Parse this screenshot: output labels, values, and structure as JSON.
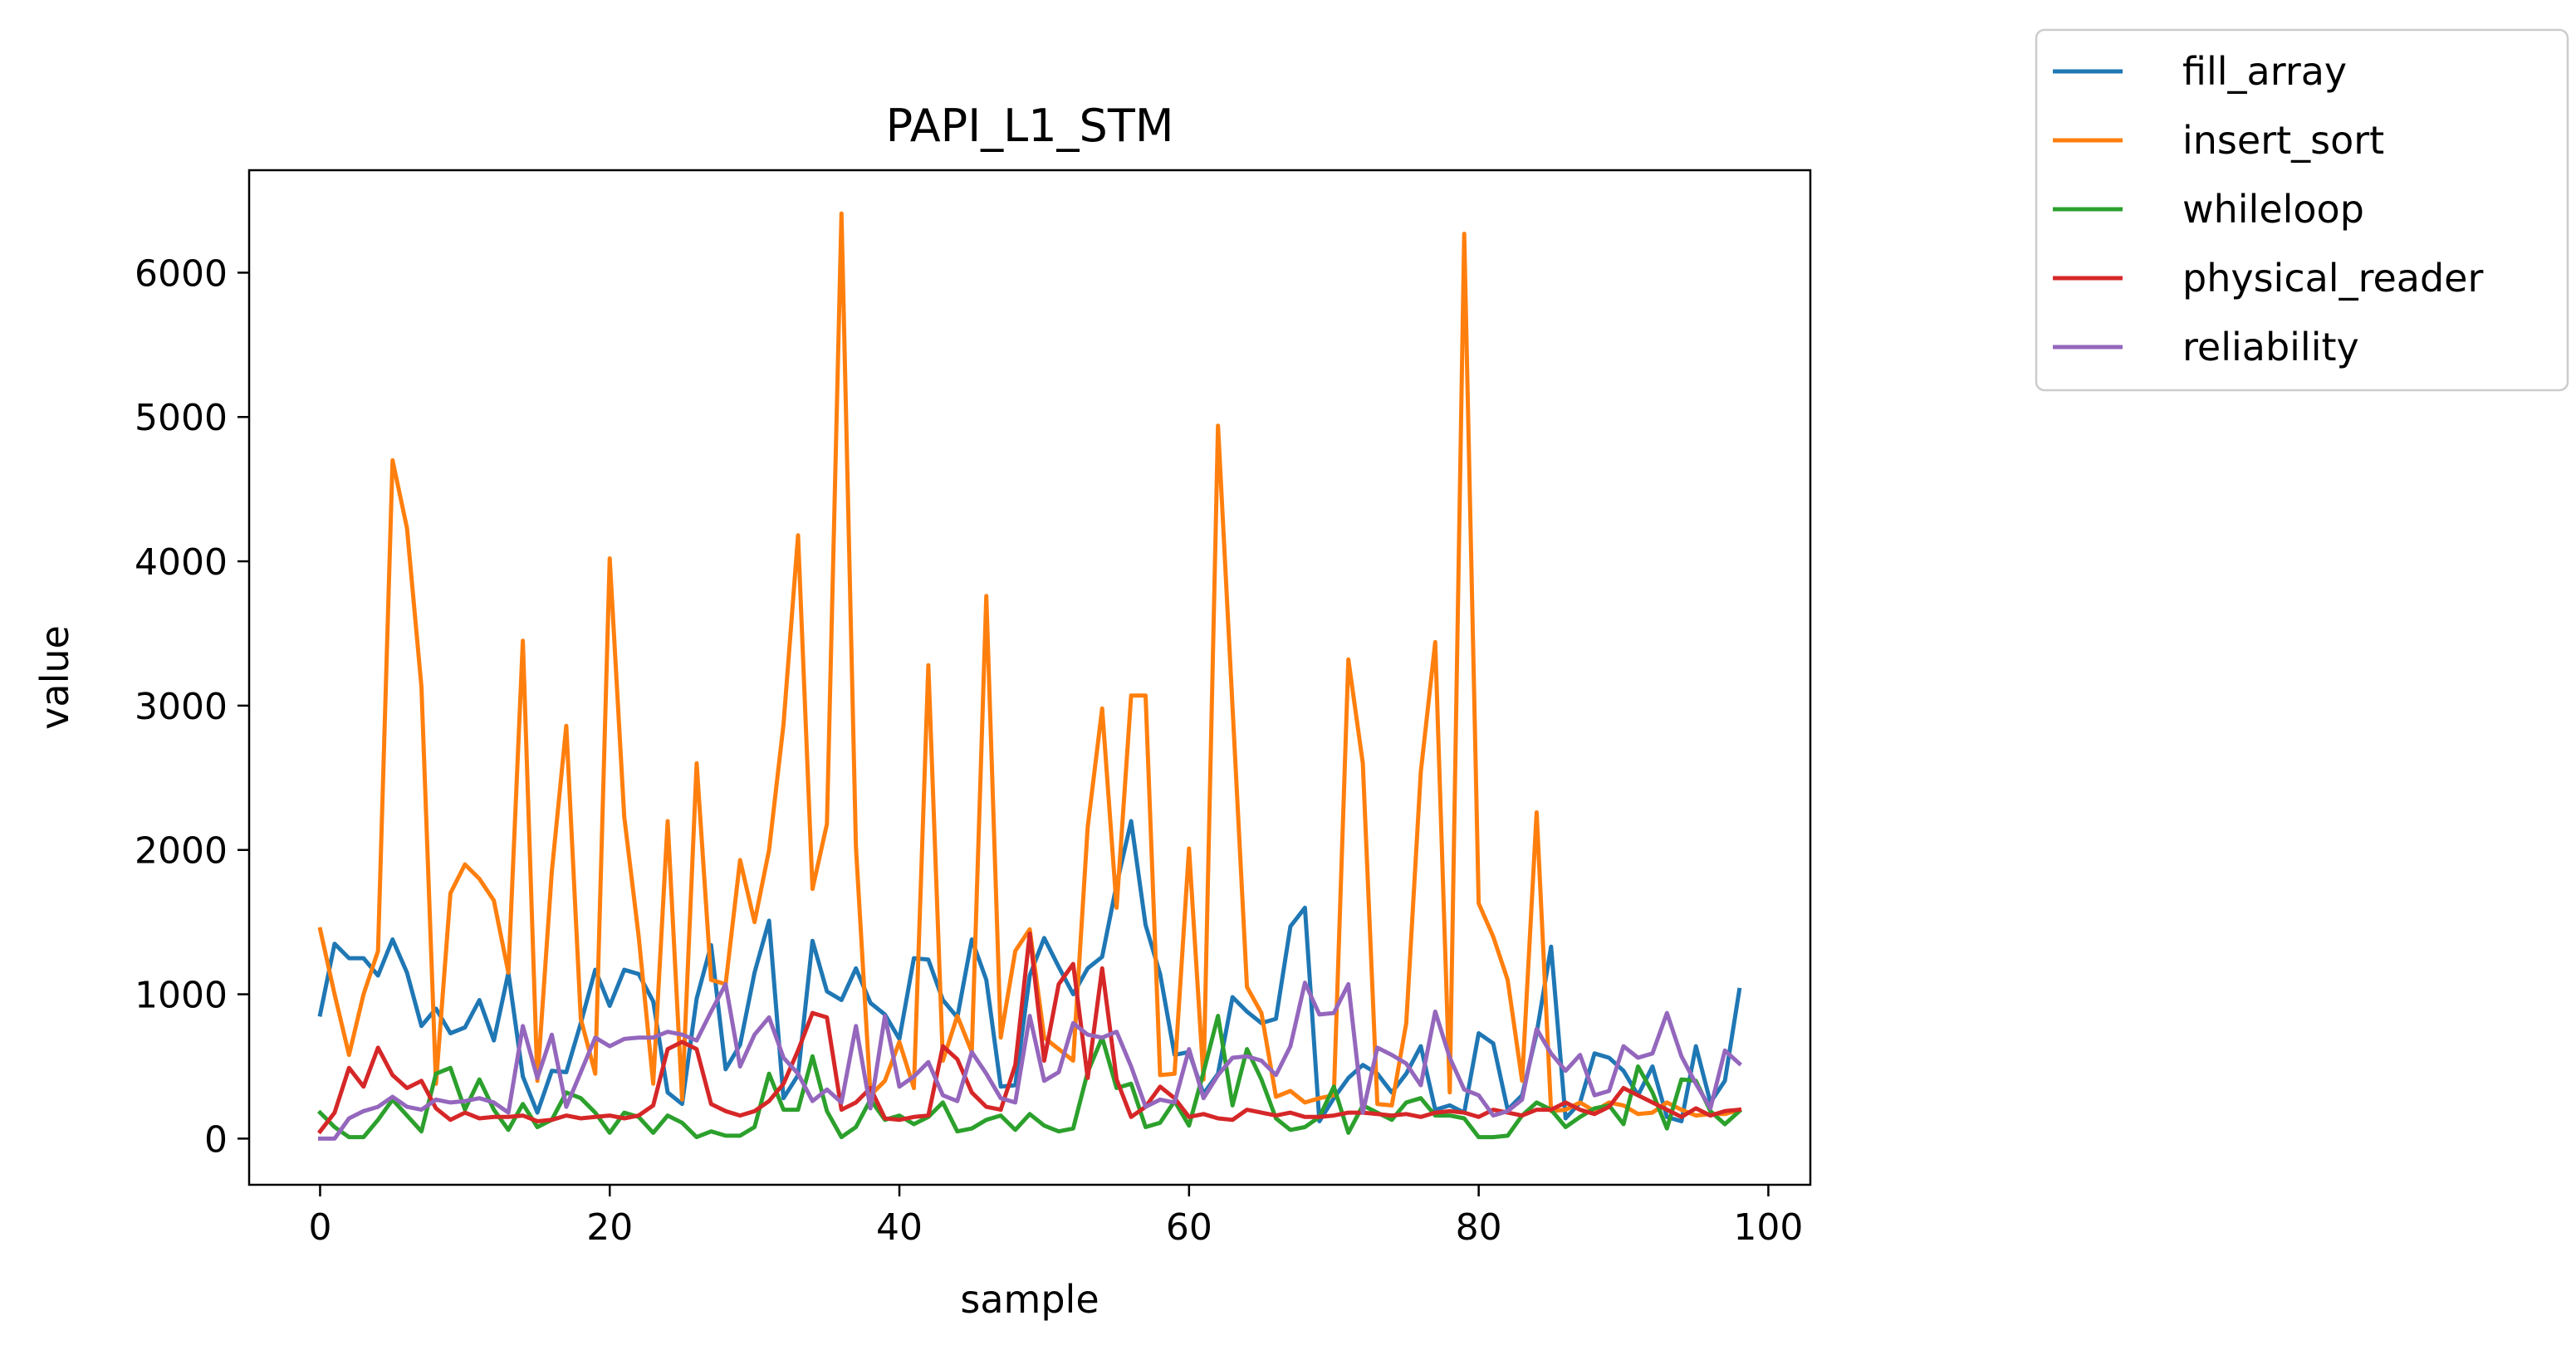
{
  "chart_data": {
    "type": "line",
    "title": "PAPI_L1_STM",
    "xlabel": "sample",
    "ylabel": "value",
    "xlim": [
      -4.9,
      102.9
    ],
    "ylim": [
      -320,
      6710
    ],
    "xticks": [
      0,
      20,
      40,
      60,
      80,
      100
    ],
    "yticks": [
      0,
      1000,
      2000,
      3000,
      4000,
      5000,
      6000
    ],
    "grid": false,
    "legend_position": "outside upper right",
    "x": [
      0,
      1,
      2,
      3,
      4,
      5,
      6,
      7,
      8,
      9,
      10,
      11,
      12,
      13,
      14,
      15,
      16,
      17,
      18,
      19,
      20,
      21,
      22,
      23,
      24,
      25,
      26,
      27,
      28,
      29,
      30,
      31,
      32,
      33,
      34,
      35,
      36,
      37,
      38,
      39,
      40,
      41,
      42,
      43,
      44,
      45,
      46,
      47,
      48,
      49,
      50,
      51,
      52,
      53,
      54,
      55,
      56,
      57,
      58,
      59,
      60,
      61,
      62,
      63,
      64,
      65,
      66,
      67,
      68,
      69,
      70,
      71,
      72,
      73,
      74,
      75,
      76,
      77,
      78,
      79,
      80,
      81,
      82,
      83,
      84,
      85,
      86,
      87,
      88,
      89,
      90,
      91,
      92,
      93,
      94,
      95,
      96,
      97,
      98
    ],
    "series": [
      {
        "name": "fill_array",
        "color": "#1f77b4",
        "values": [
          860,
          1350,
          1250,
          1250,
          1130,
          1380,
          1150,
          780,
          900,
          730,
          770,
          960,
          680,
          1150,
          430,
          180,
          470,
          460,
          800,
          1170,
          920,
          1170,
          1140,
          950,
          320,
          240,
          970,
          1340,
          480,
          650,
          1150,
          1510,
          280,
          440,
          1370,
          1020,
          960,
          1180,
          940,
          860,
          690,
          1250,
          1240,
          960,
          840,
          1380,
          1100,
          360,
          370,
          1130,
          1390,
          1190,
          1000,
          1180,
          1260,
          1760,
          2200,
          1480,
          1140,
          580,
          600,
          310,
          450,
          980,
          880,
          800,
          830,
          1470,
          1600,
          120,
          280,
          420,
          510,
          450,
          320,
          450,
          640,
          200,
          230,
          180,
          730,
          660,
          200,
          300,
          730,
          1330,
          140,
          250,
          590,
          560,
          470,
          300,
          500,
          150,
          120,
          640,
          250,
          400,
          1030
        ]
      },
      {
        "name": "insert_sort",
        "color": "#ff7f0e",
        "values": [
          1450,
          1000,
          580,
          1000,
          1300,
          4700,
          4230,
          3130,
          380,
          1700,
          1900,
          1800,
          1650,
          1150,
          3450,
          400,
          1850,
          2860,
          830,
          450,
          4020,
          2230,
          1400,
          380,
          2200,
          270,
          2600,
          1100,
          1070,
          1930,
          1500,
          2000,
          2870,
          4180,
          1730,
          2180,
          6410,
          2020,
          300,
          400,
          670,
          350,
          3280,
          540,
          850,
          600,
          3760,
          700,
          1300,
          1450,
          700,
          620,
          540,
          2160,
          2980,
          1600,
          3070,
          3070,
          440,
          450,
          2010,
          410,
          4940,
          2990,
          1050,
          870,
          290,
          330,
          250,
          280,
          300,
          3320,
          2600,
          240,
          230,
          800,
          2540,
          3440,
          320,
          6270,
          1630,
          1400,
          1100,
          400,
          2260,
          190,
          200,
          250,
          190,
          250,
          230,
          170,
          180,
          250,
          200,
          160,
          170,
          170,
          200
        ]
      },
      {
        "name": "whileloop",
        "color": "#2ca02c",
        "values": [
          180,
          80,
          10,
          10,
          130,
          270,
          160,
          50,
          450,
          490,
          200,
          410,
          200,
          60,
          240,
          80,
          130,
          320,
          280,
          180,
          40,
          180,
          150,
          40,
          160,
          110,
          10,
          50,
          20,
          20,
          80,
          450,
          200,
          200,
          570,
          190,
          10,
          80,
          270,
          130,
          160,
          100,
          150,
          250,
          50,
          70,
          130,
          160,
          60,
          170,
          90,
          50,
          70,
          460,
          700,
          350,
          380,
          80,
          110,
          260,
          90,
          460,
          850,
          230,
          620,
          410,
          140,
          60,
          80,
          150,
          360,
          40,
          230,
          180,
          130,
          250,
          280,
          160,
          160,
          140,
          10,
          10,
          20,
          160,
          250,
          200,
          80,
          150,
          210,
          230,
          100,
          500,
          320,
          70,
          410,
          400,
          190,
          100,
          190
        ]
      },
      {
        "name": "physical_reader",
        "color": "#d62728",
        "values": [
          50,
          180,
          490,
          360,
          630,
          440,
          350,
          400,
          210,
          130,
          180,
          140,
          150,
          150,
          160,
          120,
          130,
          160,
          140,
          150,
          160,
          140,
          160,
          230,
          620,
          670,
          620,
          240,
          190,
          160,
          190,
          260,
          380,
          610,
          870,
          840,
          200,
          250,
          350,
          140,
          130,
          150,
          160,
          640,
          550,
          320,
          220,
          200,
          510,
          1420,
          540,
          1070,
          1210,
          420,
          1180,
          410,
          150,
          220,
          360,
          280,
          150,
          170,
          140,
          130,
          200,
          180,
          160,
          180,
          150,
          150,
          160,
          180,
          180,
          170,
          160,
          170,
          150,
          180,
          190,
          180,
          150,
          200,
          180,
          160,
          200,
          200,
          250,
          200,
          170,
          220,
          350,
          300,
          250,
          200,
          150,
          210,
          160,
          190,
          200
        ]
      },
      {
        "name": "reliability",
        "color": "#9467bd",
        "values": [
          0,
          0,
          140,
          190,
          220,
          290,
          220,
          200,
          270,
          250,
          260,
          280,
          250,
          180,
          780,
          420,
          720,
          220,
          460,
          700,
          640,
          690,
          700,
          700,
          740,
          720,
          680,
          880,
          1070,
          500,
          720,
          840,
          560,
          450,
          260,
          340,
          250,
          780,
          210,
          850,
          360,
          430,
          530,
          300,
          260,
          600,
          450,
          280,
          250,
          850,
          400,
          460,
          800,
          720,
          700,
          740,
          500,
          220,
          270,
          250,
          620,
          280,
          440,
          560,
          570,
          540,
          440,
          640,
          1080,
          860,
          870,
          1070,
          180,
          630,
          580,
          520,
          370,
          880,
          560,
          340,
          300,
          160,
          190,
          270,
          760,
          590,
          470,
          580,
          300,
          330,
          640,
          560,
          590,
          870,
          570,
          380,
          210,
          610,
          520
        ]
      }
    ]
  }
}
